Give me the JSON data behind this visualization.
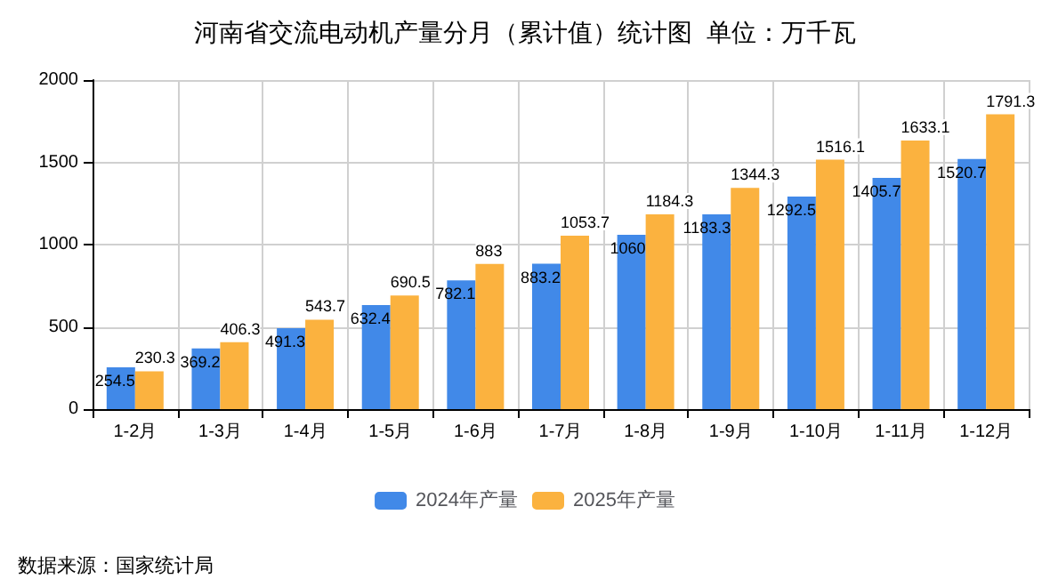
{
  "chart_data": {
    "type": "bar",
    "title": "河南省交流电动机产量分月（累计值）统计图  单位：万千瓦",
    "categories": [
      "1-2月",
      "1-3月",
      "1-4月",
      "1-5月",
      "1-6月",
      "1-7月",
      "1-8月",
      "1-9月",
      "1-10月",
      "1-11月",
      "1-12月"
    ],
    "series": [
      {
        "name": "2024年产量",
        "color": "#4189e8",
        "values": [
          254.5,
          369.2,
          491.3,
          632.4,
          782.1,
          883.2,
          1060,
          1183.3,
          1292.5,
          1405.7,
          1520.7
        ]
      },
      {
        "name": "2025年产量",
        "color": "#fbb23f",
        "values": [
          230.3,
          406.3,
          543.7,
          690.5,
          883,
          1053.7,
          1184.3,
          1344.3,
          1516.1,
          1633.1,
          1791.3
        ]
      }
    ],
    "ylim": [
      0,
      2000
    ],
    "yticks": [
      0,
      500,
      1000,
      1500,
      2000
    ],
    "grid": true,
    "legend": "bottom",
    "data_labels": true,
    "annotations": [
      "数据来源：国家统计局"
    ]
  }
}
